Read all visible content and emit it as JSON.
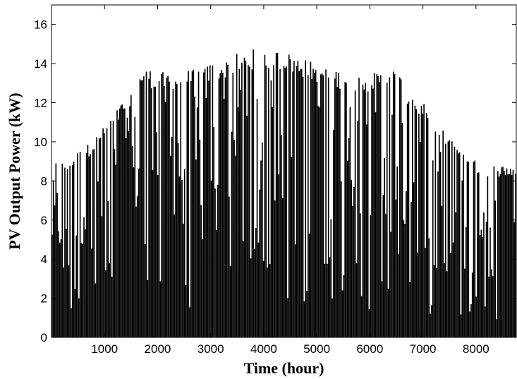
{
  "chart_data": {
    "type": "line",
    "title": "",
    "xlabel": "Time (hour)",
    "ylabel": "PV Output Power (kW)",
    "xlim": [
      0,
      8760
    ],
    "ylim": [
      0,
      17
    ],
    "xticks": [
      1000,
      2000,
      3000,
      4000,
      5000,
      6000,
      7000,
      8000
    ],
    "yticks": [
      0,
      2,
      4,
      6,
      8,
      10,
      12,
      14,
      16
    ],
    "grid": false,
    "legend": "none",
    "series": [
      {
        "color": "#000000",
        "description_of_values": "daily peak envelope (kW) of the hourly PV output, sampled at hour x",
        "x": [
          0,
          150,
          300,
          500,
          750,
          1000,
          1250,
          1500,
          1650,
          1700,
          2000,
          2250,
          2500,
          2800,
          3000,
          3250,
          3500,
          3750,
          3950,
          4200,
          4400,
          4600,
          4800,
          5000,
          5250,
          5500,
          5800,
          6000,
          6250,
          6500,
          6600,
          6700,
          7000,
          7250,
          7500,
          7750,
          8000,
          8250,
          8500,
          8760
        ],
        "y": [
          8.9,
          9.0,
          9.0,
          9.5,
          10.0,
          10.8,
          11.7,
          12.8,
          13.3,
          13.8,
          13.6,
          13.5,
          13.6,
          13.8,
          14.0,
          14.2,
          14.5,
          14.7,
          14.8,
          14.7,
          14.6,
          14.4,
          14.2,
          14.0,
          13.8,
          13.6,
          13.5,
          13.5,
          13.6,
          13.8,
          13.2,
          12.7,
          12.0,
          11.0,
          10.3,
          9.6,
          9.0,
          8.8,
          8.8,
          8.8
        ]
      }
    ]
  }
}
